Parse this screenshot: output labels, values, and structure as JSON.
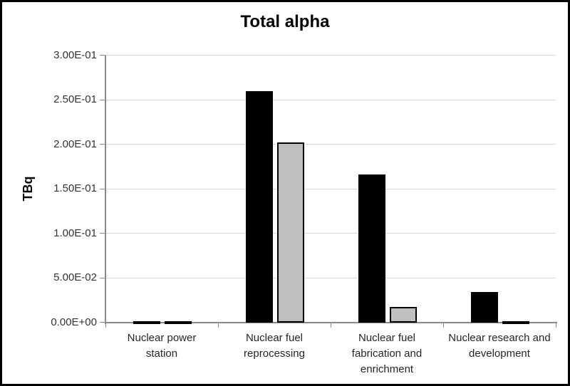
{
  "window": {
    "background": "#ffffff",
    "frame_border_color": "#000000"
  },
  "chart_data": {
    "type": "bar",
    "title": "Total alpha",
    "ylabel": "TBq",
    "xlabel": "",
    "ylim": [
      0,
      0.3
    ],
    "grid": true,
    "legend": "none",
    "yticks": [
      {
        "value": 0.0,
        "label": "0.00E+00"
      },
      {
        "value": 0.05,
        "label": "5.00E-02"
      },
      {
        "value": 0.1,
        "label": "1.00E-01"
      },
      {
        "value": 0.15,
        "label": "1.50E-01"
      },
      {
        "value": 0.2,
        "label": "2.00E-01"
      },
      {
        "value": 0.25,
        "label": "2.50E-01"
      },
      {
        "value": 0.3,
        "label": "3.00E-01"
      }
    ],
    "categories": [
      "Nuclear power\nstation",
      "Nuclear fuel\nreprocessing",
      "Nuclear fuel\nfabrication and\nenrichment",
      "Nuclear research and\ndevelopment"
    ],
    "series": [
      {
        "name": "series-1-black",
        "color": "#000000",
        "values": [
          0.0015,
          0.26,
          0.166,
          0.034
        ]
      },
      {
        "name": "series-2-gray",
        "color": "#bfbfbf",
        "values": [
          0.0015,
          0.202,
          0.017,
          0.0015
        ]
      }
    ],
    "colors": {
      "gridline": "#d9d9d9",
      "axis_line": "#898989",
      "tick_label": "#333333",
      "category_label": "#262626",
      "bar_outline": "#000000",
      "title": "#000000"
    }
  }
}
